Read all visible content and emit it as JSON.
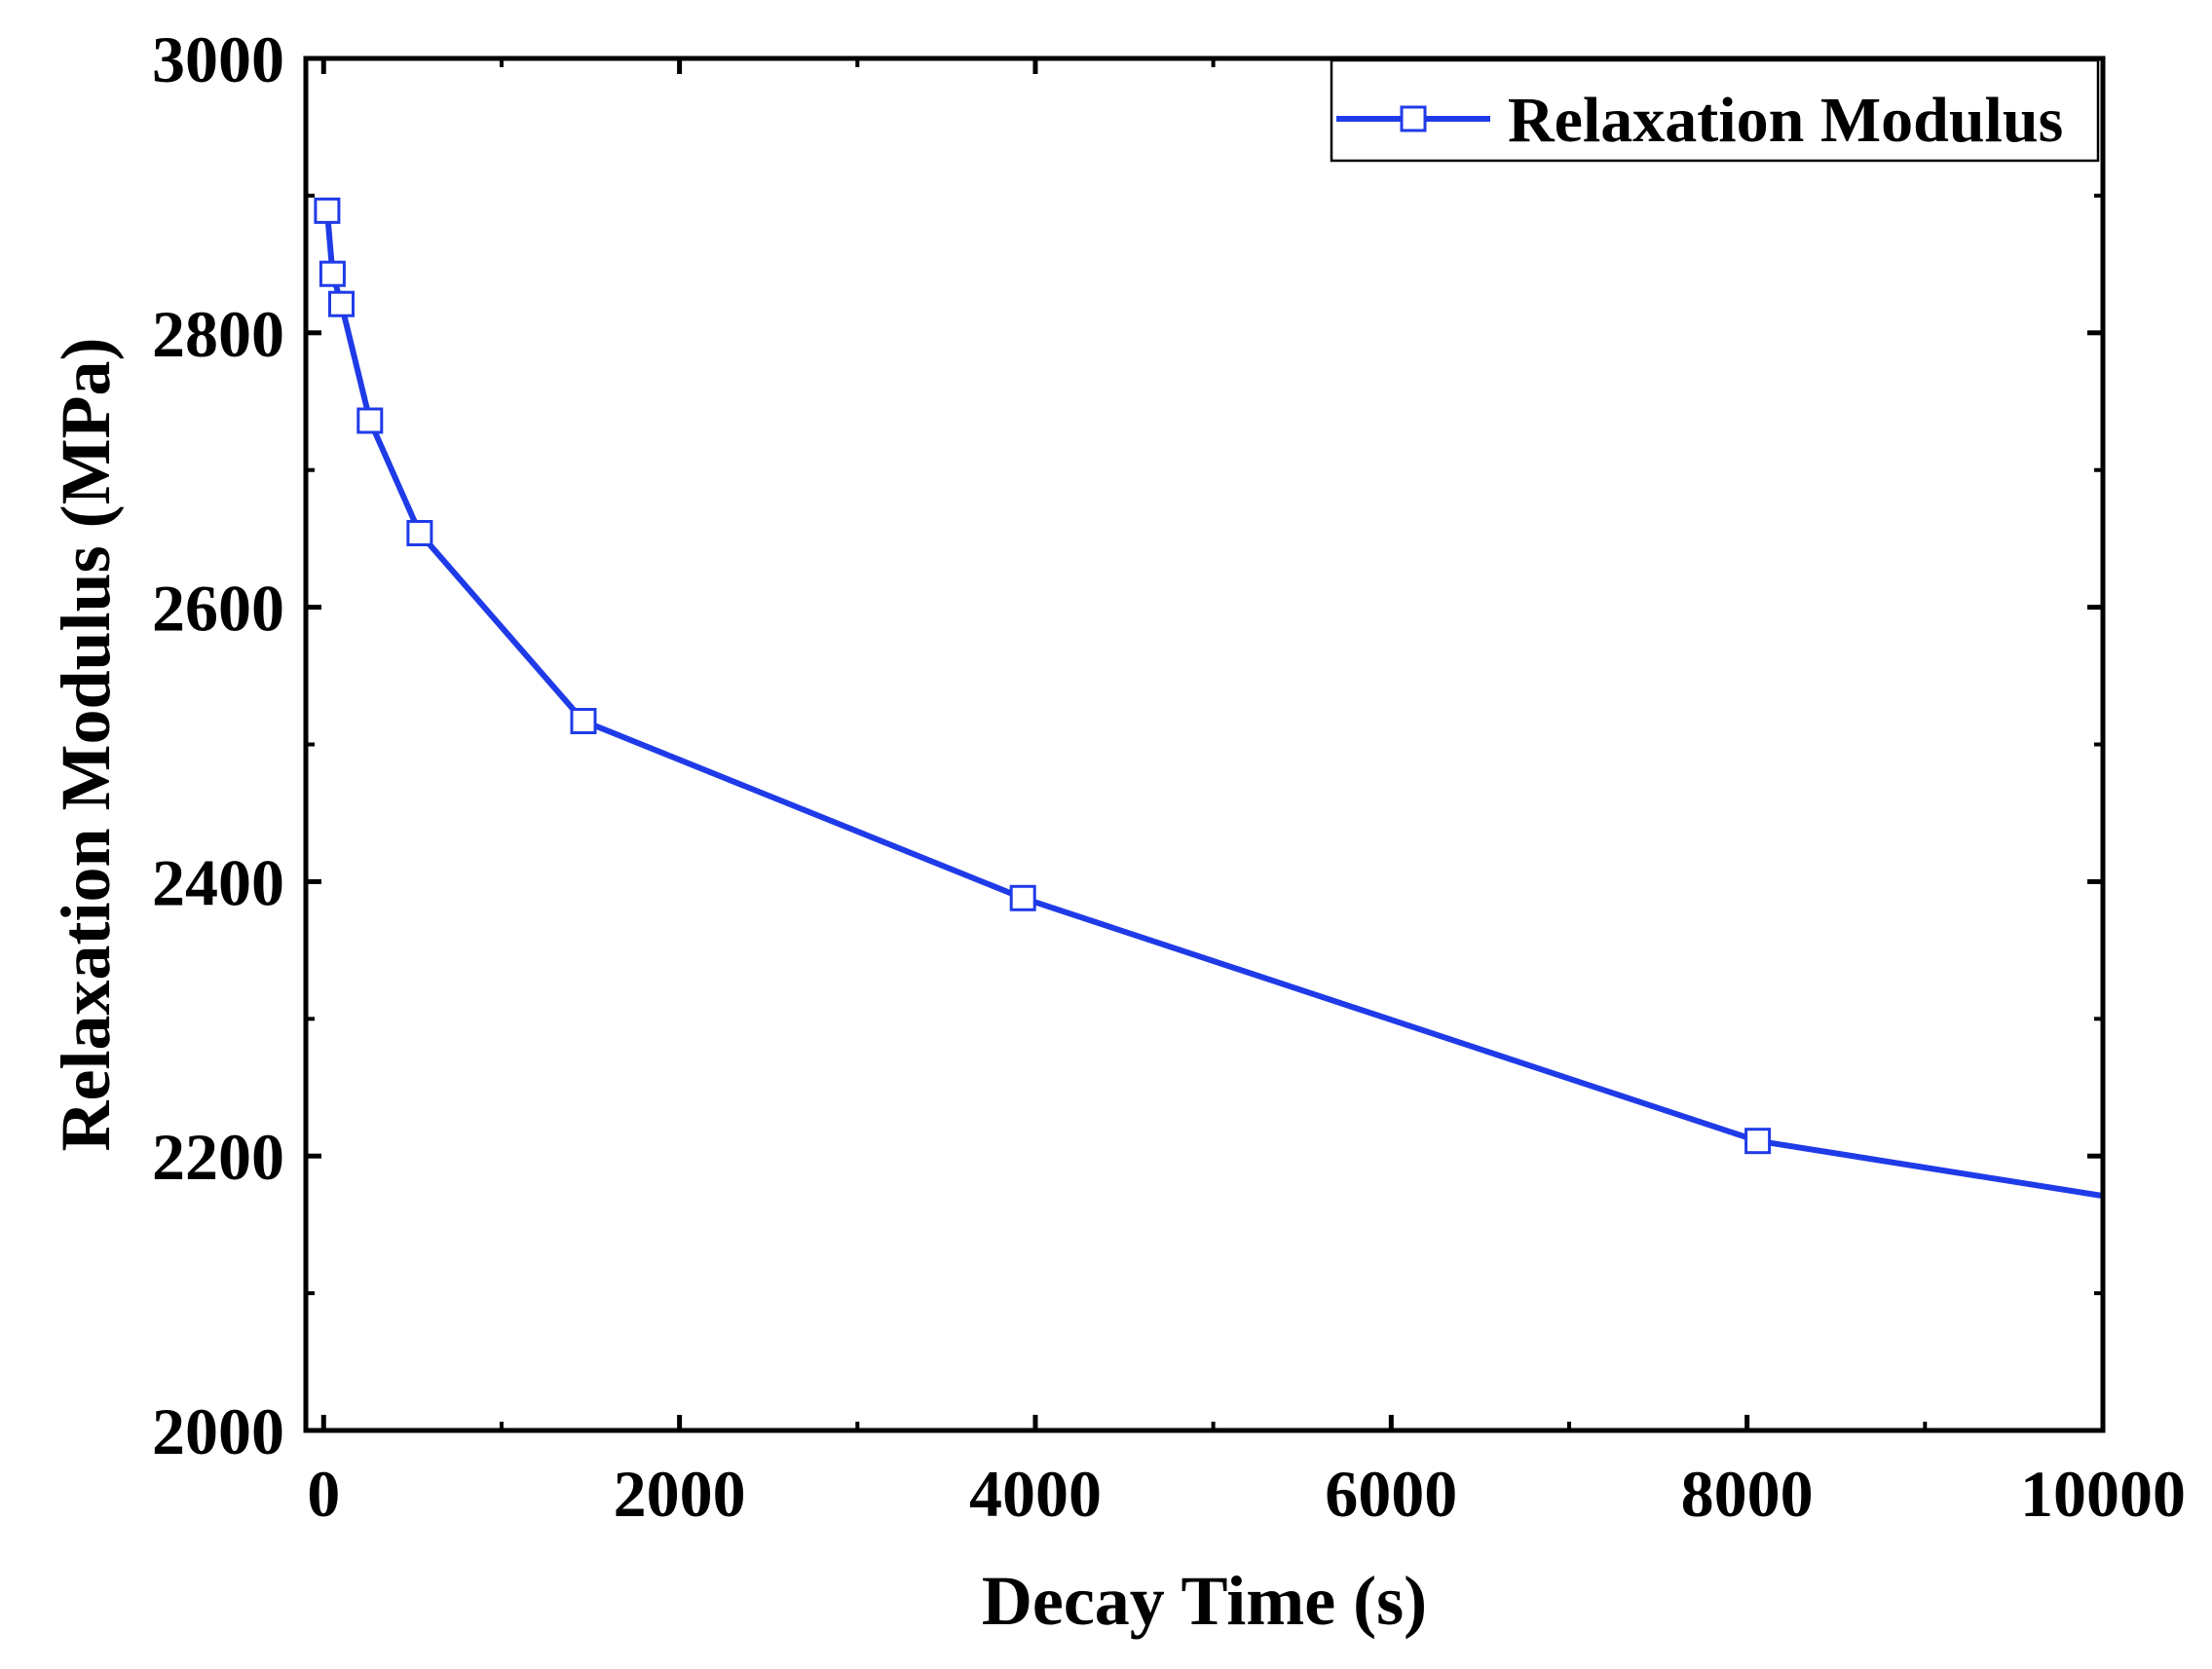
{
  "chart_data": {
    "type": "line",
    "title": "",
    "xlabel": "Decay Time (s)",
    "ylabel": "Relaxation Modulus (MPa)",
    "xlim": [
      -100,
      10000
    ],
    "ylim": [
      2000,
      3000
    ],
    "xticks": [
      0,
      2000,
      4000,
      6000,
      8000,
      10000
    ],
    "xtick_labels": [
      "0",
      "2000",
      "4000",
      "6000",
      "8000",
      "10000"
    ],
    "x_minor_ticks": [
      1000,
      3000,
      5000,
      7000,
      9000
    ],
    "yticks": [
      2000,
      2200,
      2400,
      2600,
      2800,
      3000
    ],
    "ytick_labels": [
      "2000",
      "2200",
      "2400",
      "2600",
      "2800",
      "3000"
    ],
    "y_minor_ticks": [
      2100,
      2300,
      2500,
      2700,
      2900
    ],
    "grid": false,
    "legend_position": "top-right",
    "colors": {
      "series": "#1f3be8",
      "axis": "#000000",
      "background": "#ffffff"
    },
    "series": [
      {
        "name": "Relaxation Modulus",
        "marker": "open-square",
        "x": [
          20,
          50,
          100,
          260,
          540,
          1460,
          3930,
          8060
        ],
        "y": [
          2889,
          2843,
          2821,
          2736,
          2654,
          2517,
          2388,
          2211
        ],
        "curve_x": [
          20,
          50,
          100,
          260,
          540,
          1460,
          3930,
          8060,
          10000
        ],
        "curve_y": [
          2889,
          2843,
          2821,
          2736,
          2654,
          2517,
          2388,
          2211,
          2171
        ]
      }
    ]
  }
}
